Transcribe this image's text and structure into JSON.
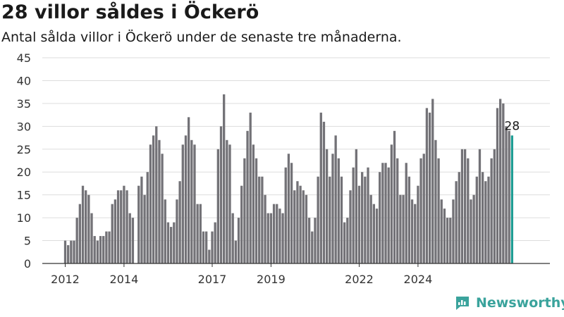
{
  "header": {
    "title": "28 villor såldes i Öckerö",
    "subtitle": "Antal sålda villor i Öckerö under de senaste tre månaderna."
  },
  "brand": {
    "name": "Newsworthy",
    "icon": "newsworthy-logo-icon"
  },
  "colors": {
    "bar": "#737277",
    "highlight": "#1f9d94",
    "brand": "#3aa39c",
    "grid": "#dddddd",
    "axis": "#333333"
  },
  "chart_data": {
    "type": "bar",
    "title": "28 villor såldes i Öckerö",
    "subtitle": "Antal sålda villor i Öckerö under de senaste tre månaderna.",
    "xlabel": "",
    "ylabel": "",
    "ylim": [
      0,
      45
    ],
    "yticks": [
      "0",
      "5",
      "10",
      "15",
      "20",
      "25",
      "30",
      "35",
      "40",
      "45"
    ],
    "xticks": [
      {
        "label": "2012",
        "index": 0
      },
      {
        "label": "2014",
        "index": 20
      },
      {
        "label": "2017",
        "index": 50
      },
      {
        "label": "2019",
        "index": 70
      },
      {
        "label": "2022",
        "index": 100
      },
      {
        "label": "2024",
        "index": 120
      }
    ],
    "grid": true,
    "highlight_last": true,
    "annotation": "28",
    "values": [
      5,
      4,
      5,
      5,
      10,
      13,
      17,
      16,
      15,
      11,
      6,
      5,
      6,
      6,
      7,
      7,
      13,
      14,
      16,
      16,
      17,
      16,
      11,
      10,
      0,
      17,
      19,
      15,
      20,
      26,
      28,
      30,
      27,
      24,
      14,
      9,
      8,
      9,
      14,
      18,
      26,
      28,
      32,
      27,
      26,
      13,
      13,
      7,
      7,
      3,
      7,
      9,
      25,
      30,
      37,
      27,
      26,
      11,
      5,
      10,
      17,
      23,
      29,
      33,
      26,
      23,
      19,
      19,
      15,
      11,
      11,
      13,
      13,
      12,
      11,
      21,
      24,
      22,
      16,
      18,
      17,
      16,
      15,
      10,
      7,
      10,
      19,
      33,
      31,
      25,
      19,
      24,
      28,
      23,
      19,
      9,
      10,
      16,
      21,
      25,
      17,
      20,
      19,
      21,
      15,
      13,
      12,
      20,
      22,
      22,
      21,
      26,
      29,
      23,
      15,
      15,
      22,
      19,
      14,
      13,
      17,
      23,
      24,
      34,
      33,
      36,
      27,
      23,
      14,
      12,
      10,
      10,
      14,
      18,
      20,
      25,
      25,
      23,
      14,
      15,
      19,
      25,
      20,
      18,
      19,
      23,
      25,
      34,
      36,
      35,
      30,
      29,
      28
    ]
  }
}
